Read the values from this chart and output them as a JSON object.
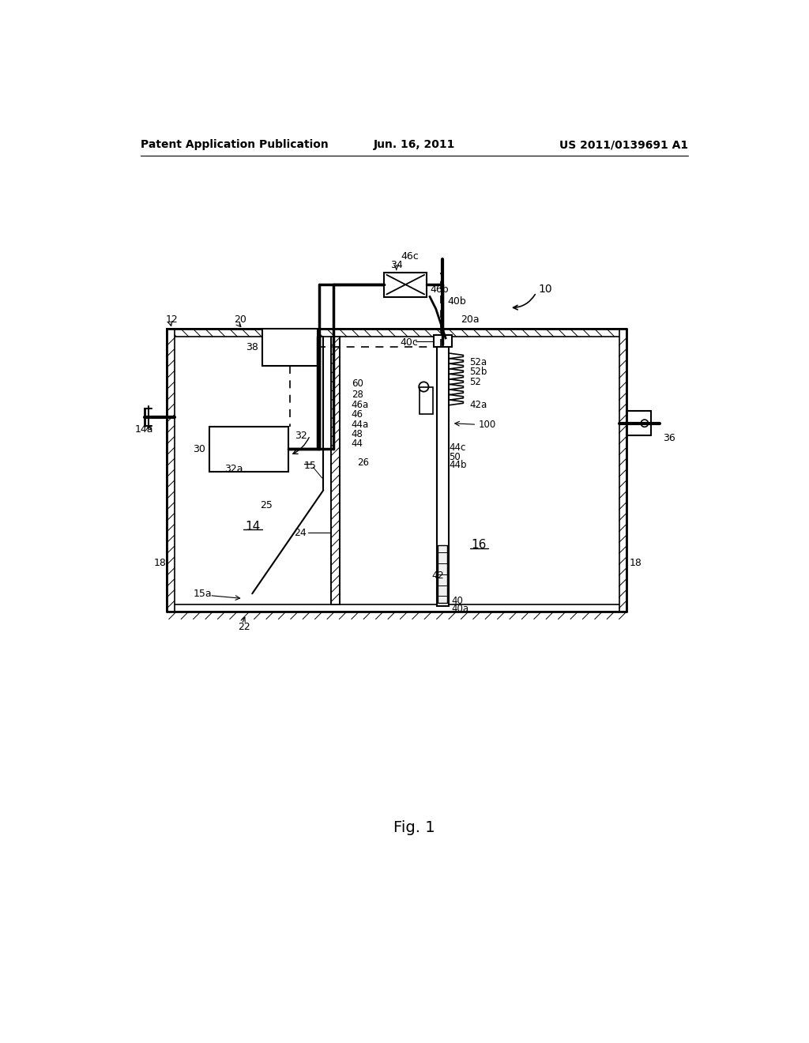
{
  "title_left": "Patent Application Publication",
  "title_center": "Jun. 16, 2011",
  "title_right": "US 2011/0139691 A1",
  "fig_label": "Fig. 1",
  "bg_color": "#ffffff"
}
